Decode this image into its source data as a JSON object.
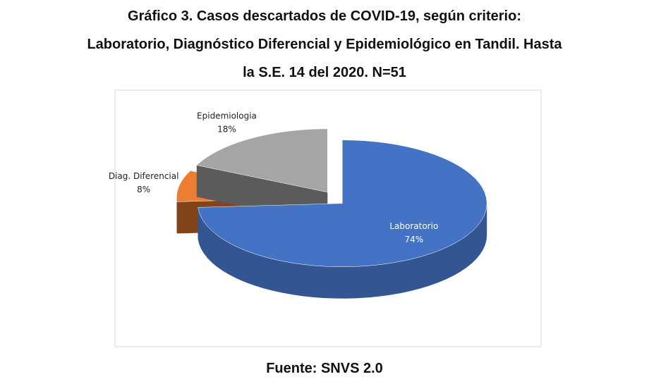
{
  "chart_data": {
    "type": "pie3d",
    "title": [
      "Gráfico 3. Casos descartados de COVID-19, según criterio:",
      "Laboratorio, Diagnóstico Diferencial y Epidemiológico en Tandil. Hasta",
      "la S.E. 14 del 2020. N=51"
    ],
    "categories": [
      "Laboratorio",
      "Diag. Diferencial",
      "Epidemiologia"
    ],
    "values": [
      74,
      8,
      18
    ],
    "value_labels": [
      "74%",
      "8%",
      "18%"
    ],
    "colors": [
      "#4472c4",
      "#ed7d31",
      "#a5a5a5"
    ],
    "source": "Fuente: SNVS 2.0"
  }
}
